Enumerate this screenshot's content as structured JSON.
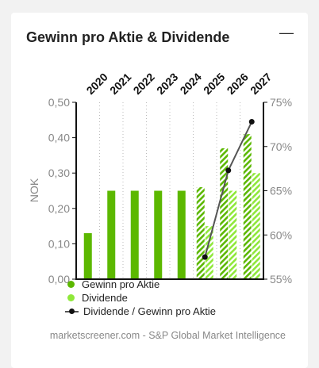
{
  "widget": {
    "title": "Gewinn pro Aktie & Dividende",
    "collapse_icon": "minus-icon",
    "source": "marketscreener.com - S&P Global Market Intelligence"
  },
  "legend": [
    {
      "label": "Gewinn pro Aktie",
      "color": "#5cb800"
    },
    {
      "label": "Dividende",
      "color": "#8fe83a"
    },
    {
      "label": "Dividende / Gewinn pro Aktie",
      "color": "#555555"
    }
  ],
  "chart_data": {
    "type": "bar",
    "categories": [
      "2020",
      "2021",
      "2022",
      "2023",
      "2024",
      "2025",
      "2026",
      "2027"
    ],
    "estimate_from": "2025",
    "ylabel": "NOK",
    "ylim": [
      0,
      0.5
    ],
    "yticks": [
      "0,00",
      "0,10",
      "0,20",
      "0,30",
      "0,40",
      "0,50"
    ],
    "y2lim": [
      55,
      75
    ],
    "y2ticks": [
      "55%",
      "60%",
      "65%",
      "70%",
      "75%"
    ],
    "series": [
      {
        "name": "Gewinn pro Aktie",
        "color": "#5cb800",
        "values": [
          0.13,
          0.25,
          0.25,
          0.25,
          0.25,
          0.26,
          0.37,
          0.41
        ]
      },
      {
        "name": "Dividende",
        "color": "#8fe83a",
        "values": [
          null,
          null,
          null,
          null,
          null,
          0.15,
          0.25,
          0.3
        ]
      },
      {
        "name": "Dividende / Gewinn pro Aktie",
        "type": "line",
        "axis": "right",
        "color": "#555555",
        "values": [
          null,
          null,
          null,
          null,
          null,
          57.5,
          67.3,
          72.8
        ]
      }
    ]
  }
}
